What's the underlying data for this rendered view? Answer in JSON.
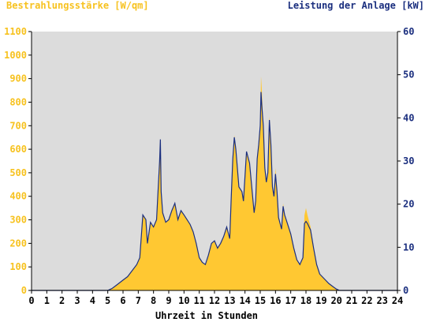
{
  "colors": {
    "plot_bg": "#dcdcdc",
    "irradiance_fill": "#ffc832",
    "power_line": "#1b2f7f",
    "left_axis_text": "#f7c21f",
    "right_axis_text": "#1b2f7f"
  },
  "chart_data": {
    "type": "area",
    "left_axis_title": "Bestrahlungsstärke [W/qm]",
    "right_axis_title": "Leistung der Anlage [kW]",
    "xlabel": "Uhrzeit in Stunden",
    "xlim": [
      0,
      24
    ],
    "ylim_left": [
      0,
      1100
    ],
    "ylim_right": [
      0,
      60
    ],
    "x_ticks": [
      "0",
      "1",
      "2",
      "3",
      "4",
      "5",
      "6",
      "7",
      "8",
      "9",
      "10",
      "11",
      "12",
      "13",
      "14",
      "15",
      "16",
      "17",
      "18",
      "19",
      "20",
      "21",
      "22",
      "23",
      "24"
    ],
    "y_ticks_left": [
      "0",
      "100",
      "200",
      "300",
      "400",
      "500",
      "600",
      "700",
      "800",
      "900",
      "1000",
      "1100"
    ],
    "y_ticks_right": [
      "0",
      "10",
      "20",
      "30",
      "40",
      "50",
      "60"
    ],
    "series": [
      {
        "name": "Bestrahlungsstärke [W/qm]",
        "axis": "left",
        "style": "filled-area",
        "points": [
          [
            0,
            0
          ],
          [
            5,
            0
          ],
          [
            5.3,
            10
          ],
          [
            5.6,
            25
          ],
          [
            6,
            45
          ],
          [
            6.3,
            60
          ],
          [
            6.6,
            85
          ],
          [
            6.9,
            110
          ],
          [
            7.1,
            140
          ],
          [
            7.3,
            320
          ],
          [
            7.5,
            300
          ],
          [
            7.6,
            200
          ],
          [
            7.8,
            290
          ],
          [
            8,
            270
          ],
          [
            8.2,
            300
          ],
          [
            8.4,
            550
          ],
          [
            8.45,
            640
          ],
          [
            8.5,
            420
          ],
          [
            8.6,
            330
          ],
          [
            8.8,
            290
          ],
          [
            9,
            300
          ],
          [
            9.2,
            340
          ],
          [
            9.4,
            370
          ],
          [
            9.6,
            300
          ],
          [
            9.8,
            340
          ],
          [
            10,
            320
          ],
          [
            10.2,
            300
          ],
          [
            10.4,
            280
          ],
          [
            10.6,
            250
          ],
          [
            10.8,
            200
          ],
          [
            11,
            140
          ],
          [
            11.2,
            120
          ],
          [
            11.4,
            110
          ],
          [
            11.6,
            150
          ],
          [
            11.8,
            200
          ],
          [
            12,
            210
          ],
          [
            12.2,
            180
          ],
          [
            12.4,
            200
          ],
          [
            12.6,
            230
          ],
          [
            12.8,
            270
          ],
          [
            13,
            220
          ],
          [
            13.1,
            400
          ],
          [
            13.2,
            560
          ],
          [
            13.3,
            660
          ],
          [
            13.4,
            600
          ],
          [
            13.6,
            440
          ],
          [
            13.8,
            420
          ],
          [
            13.9,
            380
          ],
          [
            14.1,
            590
          ],
          [
            14.3,
            540
          ],
          [
            14.5,
            400
          ],
          [
            14.6,
            330
          ],
          [
            14.7,
            380
          ],
          [
            14.8,
            560
          ],
          [
            14.9,
            620
          ],
          [
            15,
            700
          ],
          [
            15.05,
            910
          ],
          [
            15.1,
            860
          ],
          [
            15.2,
            700
          ],
          [
            15.3,
            520
          ],
          [
            15.4,
            460
          ],
          [
            15.5,
            500
          ],
          [
            15.6,
            740
          ],
          [
            15.7,
            620
          ],
          [
            15.8,
            440
          ],
          [
            15.9,
            400
          ],
          [
            16,
            520
          ],
          [
            16.1,
            420
          ],
          [
            16.2,
            310
          ],
          [
            16.4,
            260
          ],
          [
            16.5,
            370
          ],
          [
            16.6,
            320
          ],
          [
            16.8,
            280
          ],
          [
            17,
            240
          ],
          [
            17.2,
            180
          ],
          [
            17.4,
            130
          ],
          [
            17.6,
            110
          ],
          [
            17.8,
            140
          ],
          [
            17.9,
            320
          ],
          [
            18,
            350
          ],
          [
            18.1,
            320
          ],
          [
            18.3,
            270
          ],
          [
            18.5,
            180
          ],
          [
            18.7,
            110
          ],
          [
            18.9,
            70
          ],
          [
            19.2,
            50
          ],
          [
            19.5,
            30
          ],
          [
            19.8,
            15
          ],
          [
            20,
            5
          ],
          [
            20.2,
            0
          ],
          [
            24,
            0
          ]
        ]
      },
      {
        "name": "Leistung der Anlage [kW]",
        "axis": "right",
        "style": "line",
        "points": [
          [
            0,
            0
          ],
          [
            5,
            0
          ],
          [
            5.3,
            0.5
          ],
          [
            5.6,
            1.3
          ],
          [
            6,
            2.4
          ],
          [
            6.3,
            3.2
          ],
          [
            6.6,
            4.6
          ],
          [
            6.9,
            6.0
          ],
          [
            7.1,
            7.6
          ],
          [
            7.3,
            17.5
          ],
          [
            7.5,
            16.4
          ],
          [
            7.6,
            10.9
          ],
          [
            7.8,
            15.8
          ],
          [
            8,
            14.7
          ],
          [
            8.2,
            16.4
          ],
          [
            8.4,
            30.0
          ],
          [
            8.45,
            35.0
          ],
          [
            8.5,
            22.9
          ],
          [
            8.6,
            18.0
          ],
          [
            8.8,
            15.8
          ],
          [
            9,
            16.4
          ],
          [
            9.2,
            18.5
          ],
          [
            9.4,
            20.2
          ],
          [
            9.6,
            16.4
          ],
          [
            9.8,
            18.5
          ],
          [
            10,
            17.5
          ],
          [
            10.2,
            16.4
          ],
          [
            10.4,
            15.3
          ],
          [
            10.6,
            13.6
          ],
          [
            10.8,
            10.9
          ],
          [
            11,
            7.6
          ],
          [
            11.2,
            6.5
          ],
          [
            11.4,
            6.0
          ],
          [
            11.6,
            8.2
          ],
          [
            11.8,
            10.9
          ],
          [
            12,
            11.5
          ],
          [
            12.2,
            9.8
          ],
          [
            12.4,
            10.9
          ],
          [
            12.6,
            12.5
          ],
          [
            12.8,
            14.7
          ],
          [
            13,
            12.0
          ],
          [
            13.1,
            21.8
          ],
          [
            13.2,
            30.5
          ],
          [
            13.3,
            35.5
          ],
          [
            13.4,
            32.7
          ],
          [
            13.6,
            24.0
          ],
          [
            13.8,
            22.9
          ],
          [
            13.9,
            20.7
          ],
          [
            14.1,
            32.2
          ],
          [
            14.3,
            29.5
          ],
          [
            14.5,
            21.8
          ],
          [
            14.6,
            18.0
          ],
          [
            14.7,
            20.7
          ],
          [
            14.8,
            30.5
          ],
          [
            14.9,
            33.8
          ],
          [
            15,
            38.2
          ],
          [
            15.05,
            46.0
          ],
          [
            15.1,
            43.0
          ],
          [
            15.2,
            38.2
          ],
          [
            15.3,
            28.4
          ],
          [
            15.4,
            25.1
          ],
          [
            15.5,
            27.3
          ],
          [
            15.6,
            39.5
          ],
          [
            15.7,
            33.8
          ],
          [
            15.8,
            24.0
          ],
          [
            15.9,
            21.8
          ],
          [
            16,
            27.0
          ],
          [
            16.1,
            22.9
          ],
          [
            16.2,
            16.9
          ],
          [
            16.4,
            14.2
          ],
          [
            16.5,
            19.5
          ],
          [
            16.6,
            17.5
          ],
          [
            16.8,
            15.3
          ],
          [
            17,
            13.1
          ],
          [
            17.2,
            9.8
          ],
          [
            17.4,
            7.1
          ],
          [
            17.6,
            6.0
          ],
          [
            17.8,
            7.6
          ],
          [
            17.9,
            15.5
          ],
          [
            18,
            16.0
          ],
          [
            18.1,
            15.5
          ],
          [
            18.3,
            14.0
          ],
          [
            18.5,
            9.8
          ],
          [
            18.7,
            6.0
          ],
          [
            18.9,
            3.8
          ],
          [
            19.2,
            2.7
          ],
          [
            19.5,
            1.6
          ],
          [
            19.8,
            0.8
          ],
          [
            20,
            0.3
          ],
          [
            20.2,
            0
          ],
          [
            24,
            0
          ]
        ]
      }
    ]
  }
}
